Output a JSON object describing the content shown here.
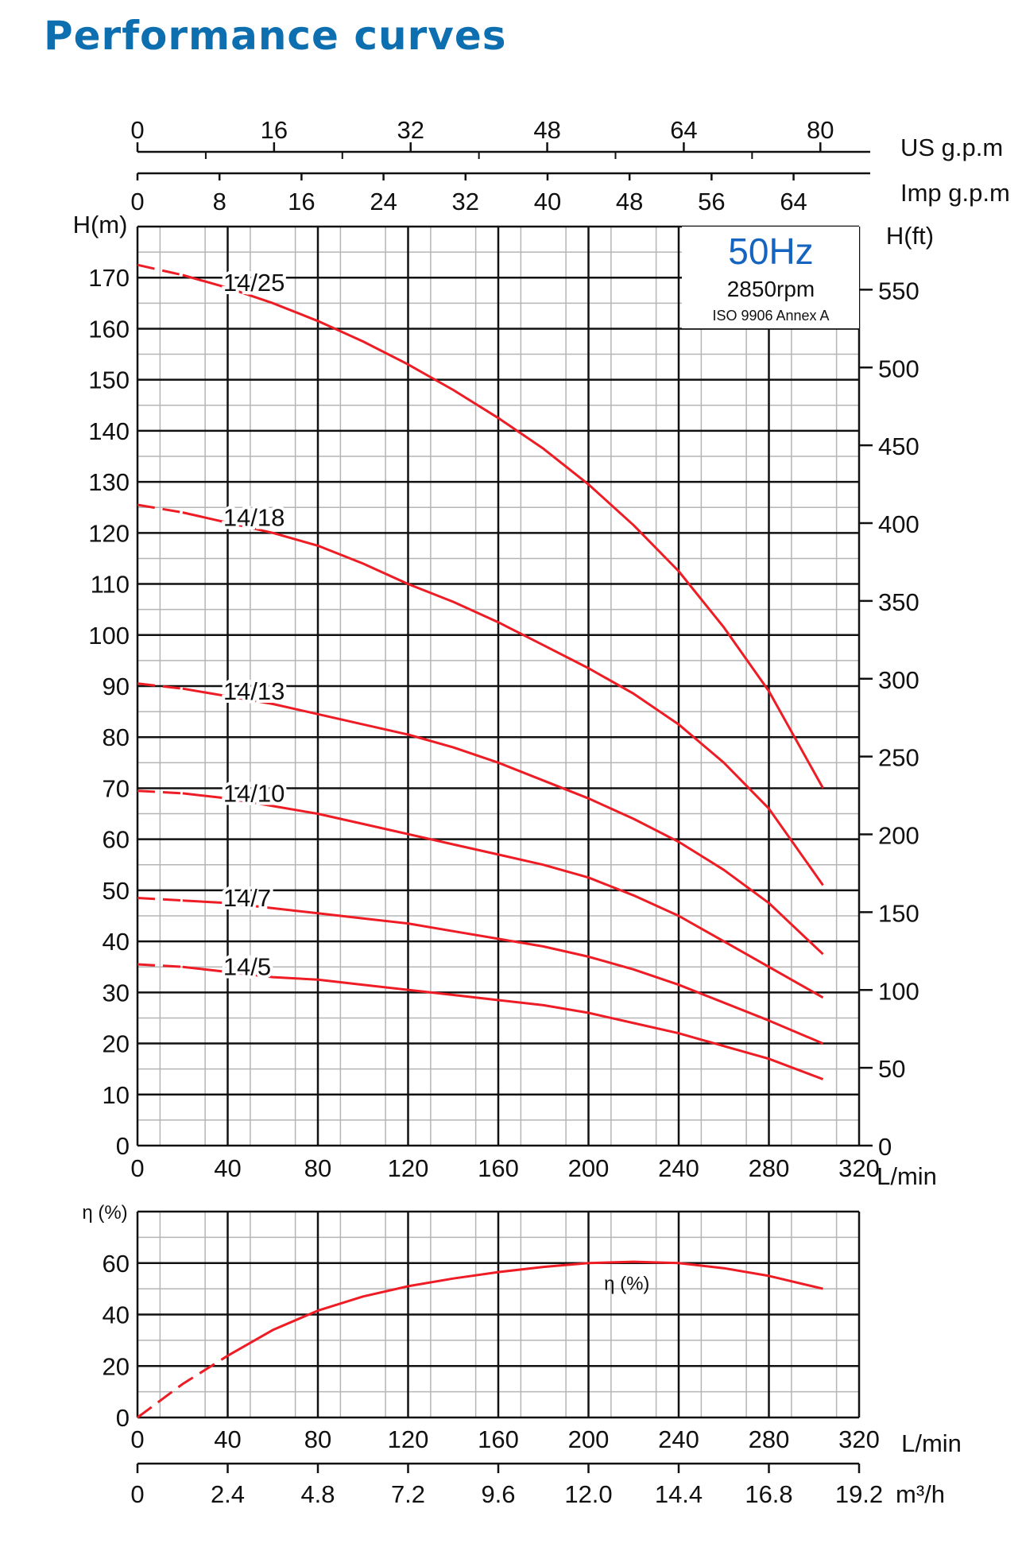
{
  "title": "Performance curves",
  "colors": {
    "curve": "#ee1c24",
    "grid_major": "#111111",
    "grid_minor": "#b5b5b5",
    "title": "#0d6fb0",
    "frequency": "#1565c0"
  },
  "info_box": {
    "frequency": "50Hz",
    "speed": "2850rpm",
    "standard": "ISO 9906 Annex A"
  },
  "chart_data": [
    {
      "type": "line",
      "xlabel": "L/min",
      "ylabel": "H(m)",
      "ylabel_right": "H(ft)",
      "xlim": [
        0,
        320
      ],
      "ylim": [
        0,
        180
      ],
      "x_ticks": [
        0,
        40,
        80,
        120,
        160,
        200,
        240,
        280,
        320
      ],
      "y_ticks": [
        0,
        10,
        20,
        30,
        40,
        50,
        60,
        70,
        80,
        90,
        100,
        110,
        120,
        130,
        140,
        150,
        160,
        170
      ],
      "y_right_ticks": [
        0,
        50,
        100,
        150,
        200,
        250,
        300,
        350,
        400,
        450,
        500,
        550
      ],
      "grid": true,
      "secondary_top_axes": [
        {
          "label": "US g.p.m",
          "ticks": [
            0,
            16,
            32,
            48,
            64,
            80
          ]
        },
        {
          "label": "Imp g.p.m",
          "ticks": [
            0,
            8,
            16,
            24,
            32,
            40,
            48,
            56,
            64
          ]
        }
      ],
      "series": [
        {
          "name": "14/25",
          "dashed_until_x": 20,
          "x": [
            0,
            20,
            40,
            60,
            80,
            100,
            120,
            140,
            160,
            180,
            200,
            220,
            240,
            260,
            280,
            304
          ],
          "values": [
            172.5,
            170.5,
            168,
            165,
            161.5,
            157.5,
            153,
            148,
            142.5,
            136.5,
            129.5,
            121.5,
            112.5,
            101.5,
            89,
            70
          ]
        },
        {
          "name": "14/18",
          "dashed_until_x": 20,
          "x": [
            0,
            20,
            40,
            60,
            80,
            100,
            120,
            140,
            160,
            180,
            200,
            220,
            240,
            260,
            280,
            304
          ],
          "values": [
            125.5,
            124,
            122,
            120,
            117.5,
            114,
            110,
            106.5,
            102.5,
            98,
            93.5,
            88.5,
            82.5,
            75,
            66,
            51
          ]
        },
        {
          "name": "14/13",
          "dashed_until_x": 20,
          "x": [
            0,
            20,
            40,
            60,
            80,
            100,
            120,
            140,
            160,
            180,
            200,
            220,
            240,
            260,
            280,
            304
          ],
          "values": [
            90.5,
            89.5,
            88,
            86.5,
            84.5,
            82.5,
            80.5,
            78,
            75,
            71.5,
            68,
            64,
            59.5,
            54,
            47.5,
            37.5
          ]
        },
        {
          "name": "14/10",
          "dashed_until_x": 20,
          "x": [
            0,
            20,
            40,
            60,
            80,
            100,
            120,
            140,
            160,
            180,
            200,
            220,
            240,
            260,
            280,
            304
          ],
          "values": [
            69.5,
            69,
            68,
            66.5,
            65,
            63,
            61,
            59,
            57,
            55,
            52.5,
            49,
            45,
            40,
            35,
            29
          ]
        },
        {
          "name": "14/7",
          "dashed_until_x": 20,
          "x": [
            0,
            20,
            40,
            60,
            80,
            100,
            120,
            140,
            160,
            180,
            200,
            220,
            240,
            260,
            280,
            304
          ],
          "values": [
            48.5,
            48,
            47.5,
            46.5,
            45.5,
            44.5,
            43.5,
            42,
            40.5,
            39,
            37,
            34.5,
            31.5,
            28,
            24.5,
            20
          ]
        },
        {
          "name": "14/5",
          "dashed_until_x": 20,
          "x": [
            0,
            20,
            40,
            60,
            80,
            100,
            120,
            140,
            160,
            180,
            200,
            220,
            240,
            260,
            280,
            304
          ],
          "values": [
            35.5,
            35,
            34,
            33,
            32.5,
            31.5,
            30.5,
            29.5,
            28.5,
            27.5,
            26,
            24,
            22,
            19.5,
            17,
            13
          ]
        }
      ]
    },
    {
      "type": "line",
      "xlabel": "L/min",
      "ylabel": "η (%)",
      "xlim": [
        0,
        320
      ],
      "ylim": [
        0,
        80
      ],
      "x_ticks": [
        0,
        40,
        80,
        120,
        160,
        200,
        240,
        280,
        320
      ],
      "y_ticks": [
        0,
        20,
        40,
        60
      ],
      "grid": true,
      "secondary_bottom_axis": {
        "label": "m³/h",
        "ticks": [
          "0",
          "2.4",
          "4.8",
          "7.2",
          "9.6",
          "12.0",
          "14.4",
          "16.8",
          "19.2"
        ]
      },
      "series": [
        {
          "name": "η (%)",
          "dashed_until_x": 40,
          "x": [
            0,
            20,
            40,
            60,
            80,
            100,
            120,
            140,
            160,
            180,
            200,
            220,
            240,
            260,
            280,
            304
          ],
          "values": [
            0,
            13,
            24,
            34,
            41.5,
            47,
            51,
            54,
            56.5,
            58.5,
            60,
            60.5,
            60,
            58,
            55,
            50
          ]
        }
      ]
    }
  ]
}
